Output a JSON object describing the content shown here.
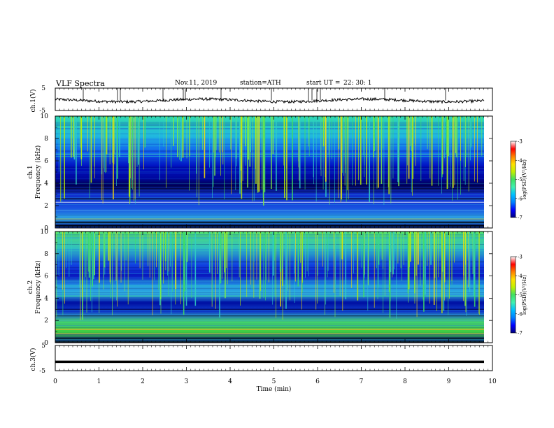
{
  "header": {
    "title": "VLF  Spectra",
    "date": "Nov.11, 2019",
    "station": "station=ATH",
    "start_label": "start  UT  =",
    "start_time": "22: 30: 1"
  },
  "colorbar": {
    "label": "log(PSD)(V²/Hz)",
    "ticks": [
      "-3",
      "-4",
      "-5",
      "-6",
      "-7"
    ],
    "colors": [
      "#000080",
      "#0000ff",
      "#0080ff",
      "#00c0ff",
      "#40f0b0",
      "#40e060",
      "#c0f000",
      "#ffe000",
      "#ff8000",
      "#ff0000",
      "#ffffff"
    ]
  },
  "chart_data": [
    {
      "type": "line",
      "panel": "ch1-waveform",
      "ylabel": "ch.1(V)",
      "yticks": [
        "5",
        "-5"
      ],
      "ylim": [
        -5,
        5
      ],
      "xlim": [
        0,
        10
      ],
      "level": -0.5,
      "description_values": "noisy trace near -0.5 V with sparse upward spikes reaching about 5 V"
    },
    {
      "type": "heatmap",
      "panel": "ch1-spectrogram",
      "ylabel": "ch.1  Frequency  (kHz)",
      "yticks": [
        "10",
        "8",
        "6",
        "4",
        "2",
        "0"
      ],
      "ylim": [
        0,
        10
      ],
      "xlim": [
        0,
        9.8
      ],
      "value_range": [
        -7,
        -3
      ]
    },
    {
      "type": "heatmap",
      "panel": "ch2-spectrogram",
      "ylabel": "ch.2  Frequency  (kHz)",
      "yticks": [
        "10",
        "8",
        "6",
        "4",
        "2",
        "0"
      ],
      "ylim": [
        0,
        10
      ],
      "xlim": [
        0,
        9.8
      ],
      "value_range": [
        -7,
        -3
      ]
    },
    {
      "type": "line",
      "panel": "ch3-waveform",
      "ylabel": "ch.3(V)",
      "yticks": [
        "5",
        "-5"
      ],
      "ylim": [
        -5,
        5
      ],
      "xlim": [
        0,
        10
      ],
      "level": -1.5
    }
  ],
  "xaxis": {
    "label": "Time  (min)",
    "ticks": [
      "0",
      "1",
      "2",
      "3",
      "4",
      "5",
      "6",
      "7",
      "8",
      "9",
      "10"
    ]
  }
}
